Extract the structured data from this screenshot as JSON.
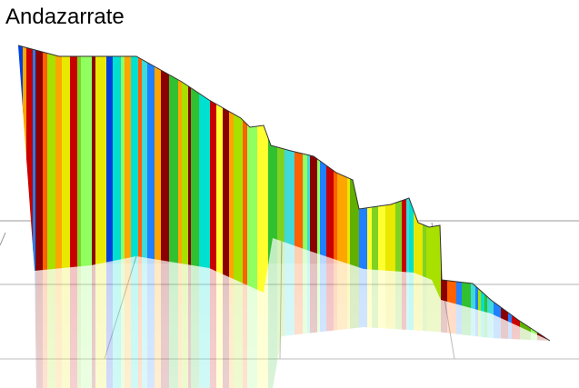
{
  "title": "Andazarrate"
}
